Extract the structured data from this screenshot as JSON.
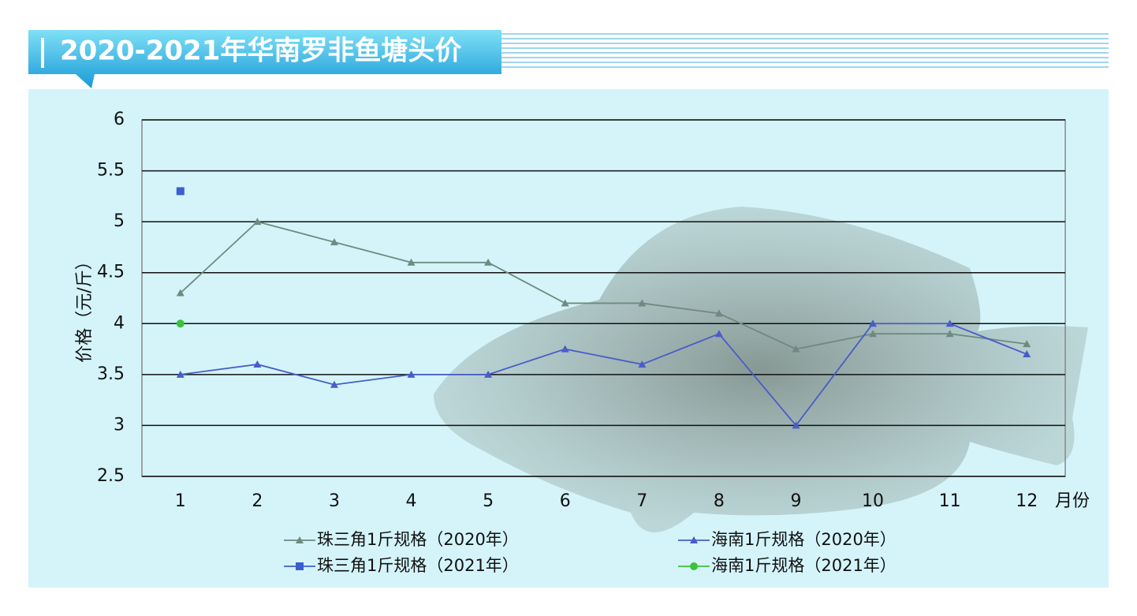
{
  "chart_data": {
    "type": "line",
    "title": "2020-2021年华南罗非鱼塘头价",
    "y_label": "价格（元/斤）",
    "x_label": "月份",
    "categories": [
      "1",
      "2",
      "3",
      "4",
      "5",
      "6",
      "7",
      "8",
      "9",
      "10",
      "11",
      "12"
    ],
    "series": [
      {
        "name": "珠三角1斤规格（2020年）",
        "color": "#6f8a80",
        "marker": "triangle",
        "values": [
          4.3,
          5.0,
          4.8,
          4.6,
          4.6,
          4.2,
          4.2,
          4.1,
          3.75,
          3.9,
          3.9,
          3.8
        ]
      },
      {
        "name": "海南1斤规格（2020年）",
        "color": "#4a5cc8",
        "marker": "triangle",
        "values": [
          3.5,
          3.6,
          3.4,
          3.5,
          3.5,
          3.75,
          3.6,
          3.9,
          3.0,
          4.0,
          4.0,
          3.7
        ]
      },
      {
        "name": "珠三角1斤规格（2021年）",
        "color": "#3a5fd0",
        "marker": "square",
        "values": [
          5.3,
          null,
          null,
          null,
          null,
          null,
          null,
          null,
          null,
          null,
          null,
          null
        ]
      },
      {
        "name": "海南1斤规格（2021年）",
        "color": "#3cc23c",
        "marker": "circle",
        "values": [
          4.0,
          null,
          null,
          null,
          null,
          null,
          null,
          null,
          null,
          null,
          null,
          null
        ]
      }
    ],
    "ylim": [
      2.5,
      6
    ],
    "yticks": [
      2.5,
      3,
      3.5,
      4,
      4.5,
      5,
      5.5,
      6
    ],
    "grid": true
  }
}
